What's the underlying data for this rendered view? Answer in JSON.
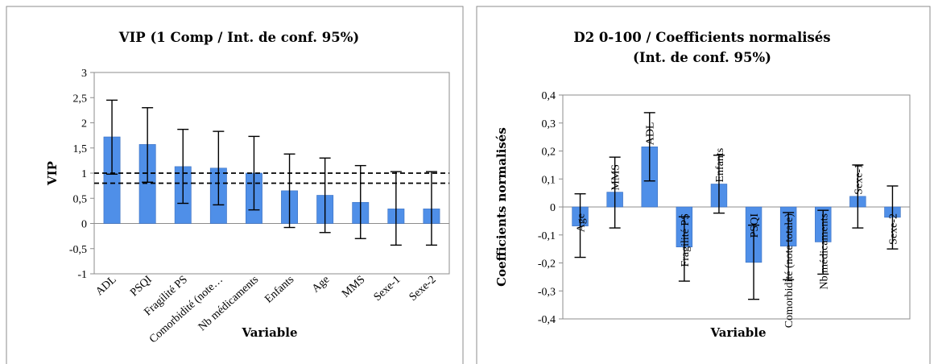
{
  "chart_data": [
    {
      "type": "bar",
      "title": "VIP (1 Comp / Int. de conf. 95%)",
      "xlabel": "Variable",
      "ylabel": "VIP",
      "ylim": [
        -1,
        3
      ],
      "yticks": [
        "-1",
        "-0,5",
        "0",
        "0,5",
        "1",
        "1,5",
        "2",
        "2,5",
        "3"
      ],
      "categories": [
        "ADL",
        "PSQI",
        "Fragilité PS",
        "Comorbidité (note…",
        "Nb médicaments",
        "Enfants",
        "Age",
        "MMS",
        "Sexe-1",
        "Sexe-2"
      ],
      "values": [
        1.72,
        1.57,
        1.13,
        1.1,
        1.0,
        0.65,
        0.56,
        0.42,
        0.29,
        0.29
      ],
      "error_low": [
        0.98,
        0.82,
        0.4,
        0.37,
        0.27,
        -0.08,
        -0.18,
        -0.3,
        -0.43,
        -0.43
      ],
      "error_high": [
        2.45,
        2.3,
        1.87,
        1.83,
        1.73,
        1.38,
        1.3,
        1.15,
        1.03,
        1.03
      ],
      "reference_lines": [
        1.0,
        0.8
      ],
      "grid": false,
      "legend": "none",
      "bar_color": "#4f8fe8"
    },
    {
      "type": "bar",
      "title_lines": [
        "D2 0-100 / Coefficients normalisés",
        "(Int. de conf. 95%)"
      ],
      "xlabel": "Variable",
      "ylabel": "Coefficients normalisés",
      "ylim": [
        -0.4,
        0.4
      ],
      "yticks": [
        "-0,4",
        "-0,3",
        "-0,2",
        "-0,1",
        "0",
        "0,1",
        "0,2",
        "0,3",
        "0,4"
      ],
      "categories": [
        "Age",
        "MMS",
        "ADL",
        "Fragilité PS",
        "Enfants",
        "PSQI",
        "Comorbidité (note totale)",
        "Nb médicaments",
        "Sexe-1",
        "Sexe-2"
      ],
      "values": [
        -0.068,
        0.053,
        0.215,
        -0.143,
        0.082,
        -0.198,
        -0.14,
        -0.125,
        0.038,
        -0.037
      ],
      "error_low": [
        -0.18,
        -0.075,
        0.093,
        -0.265,
        -0.022,
        -0.33,
        -0.26,
        -0.24,
        -0.075,
        -0.15
      ],
      "error_high": [
        0.047,
        0.178,
        0.337,
        -0.035,
        0.185,
        -0.065,
        -0.02,
        -0.012,
        0.15,
        0.075
      ],
      "grid": false,
      "legend": "none",
      "bar_color": "#4f8fe8"
    }
  ]
}
